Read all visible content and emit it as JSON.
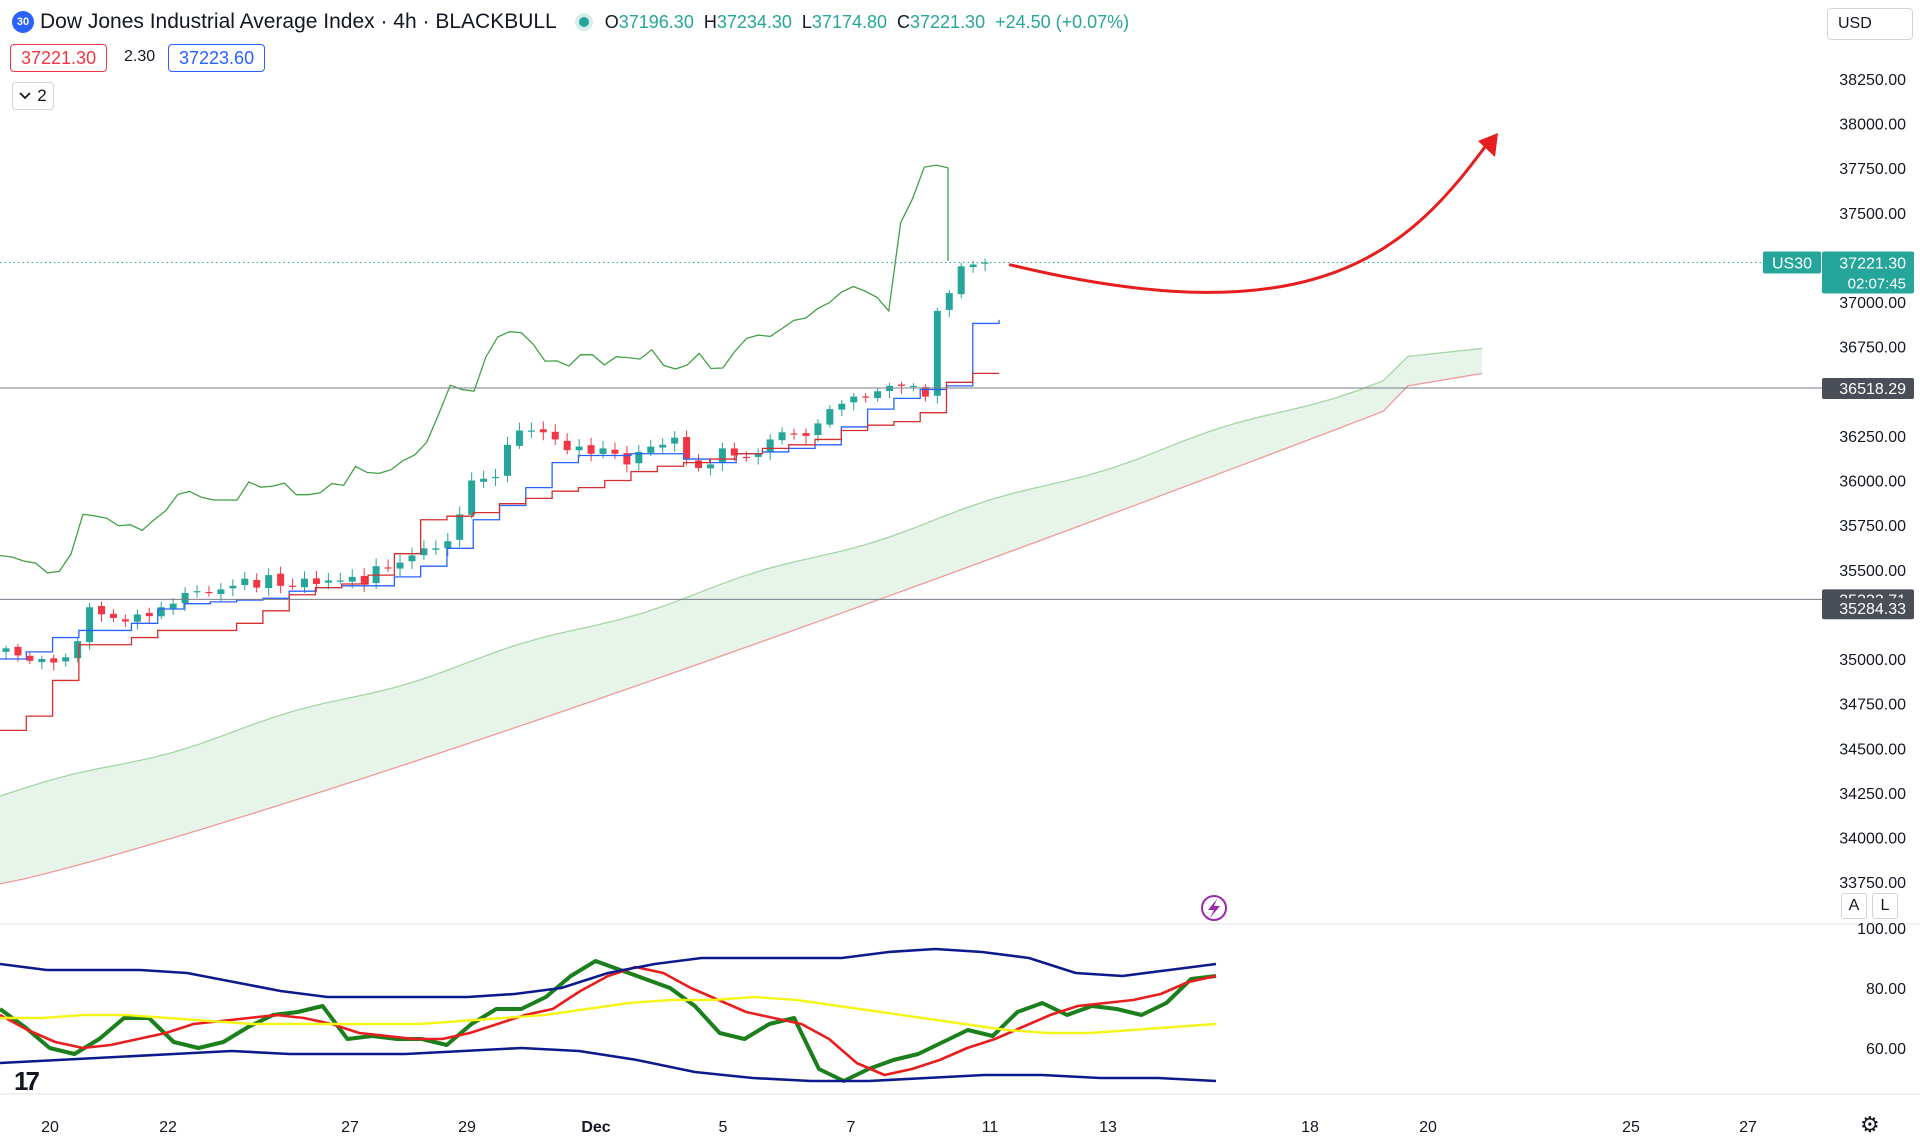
{
  "header": {
    "symbol_badge": "30",
    "title": "Dow Jones Industrial Average Index · 4h · BLACKBULL",
    "open_label": "O",
    "open": "37196.30",
    "high_label": "H",
    "high": "37234.30",
    "low_label": "L",
    "low": "37174.80",
    "close_label": "C",
    "close": "37221.30",
    "change": "+24.50 (+0.07%)",
    "bid": "37221.30",
    "spread": "2.30",
    "ask": "37223.60",
    "collapse_count": "2",
    "currency": "USD"
  },
  "buttons": {
    "auto": "A",
    "log": "L"
  },
  "colors": {
    "up": "#26a69a",
    "down": "#f23645",
    "tenkan": "#2962ff",
    "kijun": "#d32f2f",
    "chikou": "#43a047",
    "cloud": "#e3f2e5",
    "spanA": "#a5d6a7",
    "spanB": "#ef9a9a",
    "arrow": "#e61e1e",
    "osc_green": "#1b7f1b",
    "osc_red": "#e81e1e",
    "osc_yellow": "#f5f51a",
    "osc_band": "#0d1a8c"
  },
  "chart_data": [
    {
      "type": "candlestick",
      "title": "Dow Jones Industrial Average Index · 4h · BLACKBULL",
      "y_ticks": [
        "38250.00",
        "38000.00",
        "37750.00",
        "37500.00",
        "37000.00",
        "36750.00",
        "36250.00",
        "36000.00",
        "35750.00",
        "35500.00",
        "35000.00",
        "34750.00",
        "34500.00",
        "34250.00",
        "34000.00",
        "33750.00"
      ],
      "x_ticks": [
        "20",
        "22",
        "27",
        "29",
        "Dec",
        "5",
        "7",
        "11",
        "13",
        "18",
        "20",
        "25",
        "27"
      ],
      "ylim": [
        33730,
        38300
      ],
      "current_price": {
        "label": "US30",
        "value": "37221.30",
        "countdown": "02:07:45",
        "price": 37221.3
      },
      "horizontal_lines": [
        {
          "label": "36518.29",
          "value": 36518.29
        },
        {
          "label": "35333.71",
          "value": 35333.71
        },
        {
          "label": "35284.33",
          "value": 35284.33
        }
      ],
      "candles_close": [
        35060,
        35020,
        34990,
        35000,
        34980,
        35010,
        35100,
        35290,
        35250,
        35230,
        35210,
        35250,
        35240,
        35290,
        35310,
        35370,
        35380,
        35370,
        35390,
        35410,
        35450,
        35400,
        35470,
        35410,
        35410,
        35450,
        35420,
        35440,
        35440,
        35460,
        35420,
        35520,
        35510,
        35540,
        35580,
        35620,
        35620,
        35660,
        35810,
        36000,
        36010,
        36020,
        36200,
        36280,
        36280,
        36270,
        36230,
        36170,
        36190,
        36150,
        36180,
        36150,
        36090,
        36160,
        36190,
        36200,
        36240,
        36120,
        36070,
        36090,
        36180,
        36140,
        36130,
        36150,
        36230,
        36270,
        36260,
        36250,
        36320,
        36400,
        36430,
        36470,
        36470,
        36500,
        36530,
        36530,
        36530,
        36470,
        36950,
        37050,
        37200,
        37210,
        37221.3
      ],
      "tenkan": [
        35000,
        35040,
        35120,
        35160,
        35160,
        35200,
        35280,
        35310,
        35320,
        35330,
        35340,
        35380,
        35400,
        35410,
        35410,
        35460,
        35520,
        35620,
        35780,
        35860,
        35960,
        36100,
        36140,
        36140,
        36150,
        36150,
        36120,
        36100,
        36150,
        36160,
        36180,
        36200,
        36300,
        36400,
        36460,
        36510,
        36530,
        36880,
        36900
      ],
      "kijun": [
        34600,
        34680,
        34880,
        35080,
        35080,
        35120,
        35160,
        35160,
        35160,
        35200,
        35270,
        35360,
        35400,
        35420,
        35470,
        35590,
        35780,
        35800,
        35820,
        35870,
        35900,
        35940,
        35960,
        36000,
        36050,
        36080,
        36100,
        36120,
        36150,
        36180,
        36200,
        36230,
        36280,
        36310,
        36330,
        36380,
        36550,
        36600,
        36600
      ],
      "chikou_end": 37230,
      "senkou_span_a_range": [
        34100,
        36740
      ],
      "senkou_span_b_range": [
        33740,
        36600
      ],
      "annotation": "projected rebound arrow"
    },
    {
      "type": "line",
      "title": "",
      "y_ticks": [
        "100.00",
        "80.00",
        "60.00"
      ],
      "ylim": [
        46,
        102
      ],
      "series": [
        {
          "values": [
            73,
            67,
            60,
            58,
            63,
            70,
            70,
            62,
            60,
            62,
            67,
            71,
            72,
            74,
            63,
            64,
            63,
            63,
            61,
            68,
            73,
            73,
            77,
            84,
            89,
            86,
            83,
            80,
            74,
            65,
            63,
            68,
            70,
            53,
            49,
            53,
            56,
            58,
            62,
            66,
            64,
            72,
            75,
            71,
            74,
            73,
            71,
            75,
            83,
            84
          ]
        },
        {
          "values": [
            71,
            66,
            62,
            60,
            61,
            63,
            65,
            68,
            69,
            70,
            71,
            70,
            68,
            65,
            64,
            63,
            63,
            65,
            68,
            71,
            73,
            79,
            84,
            87,
            85,
            80,
            76,
            72,
            70,
            68,
            63,
            55,
            51,
            53,
            56,
            60,
            63,
            67,
            71,
            74,
            75,
            76,
            78,
            82,
            84
          ]
        },
        {
          "values": [
            70,
            70,
            71,
            71,
            70,
            69,
            68,
            68,
            68,
            68,
            68,
            69,
            70,
            71,
            73,
            75,
            76,
            76,
            77,
            76,
            74,
            72,
            70,
            68,
            66,
            65,
            65,
            66,
            67,
            68
          ]
        },
        {
          "values": [
            88,
            86,
            86,
            86,
            85,
            82,
            79,
            77,
            77,
            77,
            77,
            78,
            80,
            85,
            88,
            90,
            90,
            90,
            90,
            92,
            93,
            92,
            90,
            85,
            84,
            86,
            88
          ]
        },
        {
          "values": [
            55,
            56,
            57,
            58,
            59,
            58,
            58,
            58,
            59,
            60,
            59,
            56,
            52,
            50,
            49,
            49,
            50,
            51,
            51,
            50,
            50,
            49
          ]
        }
      ]
    }
  ]
}
